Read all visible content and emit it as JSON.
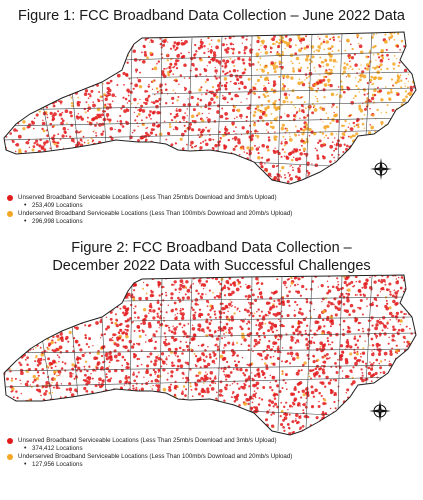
{
  "figure1": {
    "title": "Figure 1: FCC Broadband Data Collection – June 2022 Data",
    "legend": [
      {
        "color": "#e31a1c",
        "label": "Unserved Broadband Serviceable Locations (Less Than 25mb/s Download and 3mb/s Upload)",
        "count": "253,409 Locations"
      },
      {
        "color": "#f5a623",
        "label": "Underserved Broadband Serviceable Locations (Less Than 100mb/s Download and 20mb/s Upload)",
        "count": "296,998 Locations"
      }
    ]
  },
  "figure2": {
    "title_line1": "Figure 2: FCC Broadband Data Collection –",
    "title_line2": "December 2022 Data with Successful Challenges",
    "legend": [
      {
        "color": "#e31a1c",
        "label": "Unserved Broadband Serviceable Locations (Less Than 25mb/s Download and 3mb/s Upload)",
        "count": "374,412 Locations"
      },
      {
        "color": "#f5a623",
        "label": "Underserved Broadband Serviceable Locations (Less Than 100mb/s Download and 20mb/s Upload)",
        "count": "127,956 Locations"
      }
    ]
  },
  "colors": {
    "unserved": "#e31a1c",
    "underserved": "#f5a623",
    "land": "#ffffff",
    "border": "#333333"
  },
  "icons": {
    "compass": "compass-rose-icon"
  }
}
